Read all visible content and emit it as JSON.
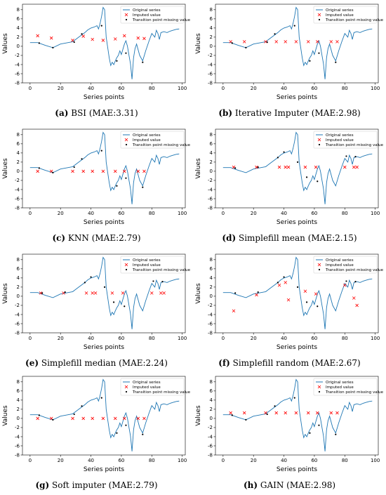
{
  "legend": {
    "original": "Original series",
    "imputed": "Imputed value",
    "transition": "Transition point missing value"
  },
  "colors": {
    "series": "#1f77b4",
    "imputed": "#ff0000",
    "transition": "#000000"
  },
  "chart_data": [
    {
      "type": "line",
      "letter": "(a)",
      "caption": "BSI (MAE:3.31)",
      "xlabel": "Series points",
      "ylabel": "Values",
      "xlim": [
        -5,
        102
      ],
      "ylim": [
        -8,
        9.2
      ],
      "xticks": [
        0,
        20,
        40,
        60,
        80,
        100
      ],
      "yticks": [
        -8,
        -6,
        -4,
        -2,
        0,
        2,
        4,
        6,
        8
      ],
      "imputed": [
        [
          5,
          2.3
        ],
        [
          14,
          1.8
        ],
        [
          28,
          1.3
        ],
        [
          35,
          2.2
        ],
        [
          41,
          1.5
        ],
        [
          48,
          1.3
        ],
        [
          56,
          1.6
        ],
        [
          62,
          2.3
        ],
        [
          71,
          1.8
        ],
        [
          75,
          1.7
        ]
      ],
      "transition": [
        [
          6,
          0.7
        ],
        [
          15,
          -0.3
        ],
        [
          29,
          0.9
        ],
        [
          34,
          2.7
        ],
        [
          47,
          4.5
        ],
        [
          57,
          -3.2
        ],
        [
          63,
          -1.5
        ],
        [
          74,
          -3.5
        ]
      ]
    },
    {
      "type": "line",
      "letter": "(b)",
      "caption": "Iterative Imputer (MAE:2.98)",
      "xlabel": "Series points",
      "ylabel": "Values",
      "xlim": [
        -5,
        102
      ],
      "ylim": [
        -8,
        9.2
      ],
      "xticks": [
        0,
        20,
        40,
        60,
        80,
        100
      ],
      "yticks": [
        -8,
        -6,
        -4,
        -2,
        0,
        2,
        4,
        6,
        8
      ],
      "imputed": [
        [
          5,
          1.0
        ],
        [
          14,
          1.0
        ],
        [
          28,
          1.0
        ],
        [
          35,
          1.0
        ],
        [
          41,
          1.0
        ],
        [
          48,
          1.0
        ],
        [
          56,
          1.0
        ],
        [
          62,
          1.0
        ],
        [
          71,
          1.0
        ],
        [
          75,
          1.0
        ]
      ],
      "transition": [
        [
          6,
          0.7
        ],
        [
          15,
          -0.3
        ],
        [
          29,
          0.9
        ],
        [
          34,
          2.7
        ],
        [
          47,
          4.5
        ],
        [
          57,
          -3.2
        ],
        [
          63,
          -1.5
        ],
        [
          74,
          -3.5
        ]
      ]
    },
    {
      "type": "line",
      "letter": "(c)",
      "caption": "KNN (MAE:2.79)",
      "xlabel": "Series points",
      "ylabel": "Values",
      "xlim": [
        -5,
        102
      ],
      "ylim": [
        -8,
        9.2
      ],
      "xticks": [
        0,
        20,
        40,
        60,
        80,
        100
      ],
      "yticks": [
        -8,
        -6,
        -4,
        -2,
        0,
        2,
        4,
        6,
        8
      ],
      "imputed": [
        [
          5,
          0.0
        ],
        [
          14,
          0.0
        ],
        [
          28,
          0.0
        ],
        [
          35,
          0.0
        ],
        [
          41,
          0.0
        ],
        [
          48,
          0.0
        ],
        [
          56,
          0.0
        ],
        [
          62,
          0.0
        ],
        [
          71,
          0.0
        ],
        [
          75,
          0.0
        ]
      ],
      "transition": [
        [
          6,
          0.7
        ],
        [
          15,
          -0.3
        ],
        [
          29,
          0.9
        ],
        [
          34,
          2.7
        ],
        [
          47,
          4.5
        ],
        [
          57,
          -3.2
        ],
        [
          63,
          -1.5
        ],
        [
          74,
          -3.5
        ]
      ]
    },
    {
      "type": "line",
      "letter": "(d)",
      "caption": "Simplefill mean (MAE:2.15)",
      "xlabel": "Series points",
      "ylabel": "Values",
      "xlim": [
        -5,
        102
      ],
      "ylim": [
        -8,
        9.2
      ],
      "xticks": [
        0,
        20,
        40,
        60,
        80,
        100
      ],
      "yticks": [
        -8,
        -6,
        -4,
        -2,
        0,
        2,
        4,
        6,
        8
      ],
      "imputed": [
        [
          7,
          0.9
        ],
        [
          22,
          0.9
        ],
        [
          37,
          0.9
        ],
        [
          41,
          0.9
        ],
        [
          43,
          0.9
        ],
        [
          54,
          0.9
        ],
        [
          61,
          0.9
        ],
        [
          80,
          0.9
        ],
        [
          86,
          0.9
        ],
        [
          88,
          0.9
        ]
      ],
      "transition": [
        [
          8,
          0.7
        ],
        [
          23,
          0.9
        ],
        [
          36,
          3.0
        ],
        [
          40,
          4.2
        ],
        [
          49,
          2.0
        ],
        [
          55,
          -1.3
        ],
        [
          62,
          -2.2
        ],
        [
          81,
          3.3
        ],
        [
          87,
          3.2
        ]
      ]
    },
    {
      "type": "line",
      "letter": "(e)",
      "caption": "Simplefill median (MAE:2.24)",
      "xlabel": "Series points",
      "ylabel": "Values",
      "xlim": [
        -5,
        102
      ],
      "ylim": [
        -8,
        9.2
      ],
      "xticks": [
        0,
        20,
        40,
        60,
        80,
        100
      ],
      "yticks": [
        -8,
        -6,
        -4,
        -2,
        0,
        2,
        4,
        6,
        8
      ],
      "imputed": [
        [
          7,
          0.7
        ],
        [
          22,
          0.7
        ],
        [
          37,
          0.7
        ],
        [
          41,
          0.7
        ],
        [
          43,
          0.7
        ],
        [
          54,
          0.7
        ],
        [
          61,
          0.7
        ],
        [
          80,
          0.7
        ],
        [
          86,
          0.7
        ],
        [
          88,
          0.7
        ]
      ],
      "transition": [
        [
          8,
          0.7
        ],
        [
          23,
          0.9
        ],
        [
          36,
          3.0
        ],
        [
          40,
          4.2
        ],
        [
          49,
          2.0
        ],
        [
          55,
          -1.3
        ],
        [
          62,
          -2.2
        ],
        [
          81,
          3.3
        ],
        [
          87,
          3.2
        ]
      ]
    },
    {
      "type": "line",
      "letter": "(f)",
      "caption": "Simplefill random (MAE:2.67)",
      "xlabel": "Series points",
      "ylabel": "Values",
      "xlim": [
        -5,
        102
      ],
      "ylim": [
        -8,
        9.2
      ],
      "xticks": [
        0,
        20,
        40,
        60,
        80,
        100
      ],
      "yticks": [
        -8,
        -6,
        -4,
        -2,
        0,
        2,
        4,
        6,
        8
      ],
      "imputed": [
        [
          7,
          -3.2
        ],
        [
          22,
          0.3
        ],
        [
          37,
          2.4
        ],
        [
          41,
          3.0
        ],
        [
          43,
          -0.8
        ],
        [
          54,
          1.1
        ],
        [
          61,
          0.5
        ],
        [
          80,
          2.4
        ],
        [
          86,
          -0.4
        ],
        [
          88,
          -2.0
        ]
      ],
      "transition": [
        [
          8,
          0.7
        ],
        [
          23,
          0.9
        ],
        [
          36,
          3.0
        ],
        [
          40,
          4.2
        ],
        [
          49,
          2.0
        ],
        [
          55,
          -1.3
        ],
        [
          62,
          -2.2
        ],
        [
          81,
          3.3
        ],
        [
          87,
          3.2
        ]
      ]
    },
    {
      "type": "line",
      "letter": "(g)",
      "caption": "Soft imputer (MAE:2.79)",
      "xlabel": "Series points",
      "ylabel": "Values",
      "xlim": [
        -5,
        102
      ],
      "ylim": [
        -8,
        9.2
      ],
      "xticks": [
        0,
        20,
        40,
        60,
        80,
        100
      ],
      "yticks": [
        -8,
        -6,
        -4,
        -2,
        0,
        2,
        4,
        6,
        8
      ],
      "imputed": [
        [
          5,
          0.0
        ],
        [
          14,
          0.0
        ],
        [
          28,
          0.0
        ],
        [
          35,
          0.0
        ],
        [
          41,
          0.0
        ],
        [
          48,
          0.0
        ],
        [
          56,
          0.0
        ],
        [
          62,
          0.0
        ],
        [
          71,
          0.0
        ],
        [
          75,
          0.0
        ]
      ],
      "transition": [
        [
          6,
          0.7
        ],
        [
          15,
          -0.3
        ],
        [
          29,
          0.9
        ],
        [
          34,
          2.7
        ],
        [
          47,
          4.5
        ],
        [
          57,
          -3.2
        ],
        [
          63,
          -1.5
        ],
        [
          74,
          -3.5
        ]
      ]
    },
    {
      "type": "line",
      "letter": "(h)",
      "caption": "GAIN (MAE:2.98)",
      "xlabel": "Series points",
      "ylabel": "Values",
      "xlim": [
        -5,
        102
      ],
      "ylim": [
        -8,
        9.2
      ],
      "xticks": [
        0,
        20,
        40,
        60,
        80,
        100
      ],
      "yticks": [
        -8,
        -6,
        -4,
        -2,
        0,
        2,
        4,
        6,
        8
      ],
      "imputed": [
        [
          5,
          1.2
        ],
        [
          14,
          1.2
        ],
        [
          28,
          1.2
        ],
        [
          35,
          1.2
        ],
        [
          41,
          1.2
        ],
        [
          48,
          1.2
        ],
        [
          56,
          1.2
        ],
        [
          62,
          1.2
        ],
        [
          71,
          1.2
        ],
        [
          75,
          1.2
        ]
      ],
      "transition": [
        [
          6,
          0.7
        ],
        [
          15,
          -0.3
        ],
        [
          29,
          0.9
        ],
        [
          34,
          2.7
        ],
        [
          47,
          4.5
        ],
        [
          57,
          -3.2
        ],
        [
          63,
          -1.5
        ],
        [
          74,
          -3.5
        ]
      ]
    }
  ],
  "original_series": {
    "x": [
      0,
      5,
      10,
      15,
      20,
      25,
      28,
      30,
      32,
      34,
      36,
      38,
      40,
      42,
      44,
      45,
      46,
      47,
      48,
      49,
      50,
      52,
      53,
      54,
      55,
      56,
      57,
      58,
      59,
      60,
      62,
      63,
      64,
      65,
      66,
      67,
      68,
      69,
      70,
      72,
      74,
      76,
      78,
      80,
      82,
      83,
      84,
      85,
      86,
      88,
      90,
      92,
      94,
      96,
      98
    ],
    "y": [
      0.8,
      0.8,
      0.2,
      -0.3,
      0.5,
      0.8,
      1.0,
      1.5,
      2.0,
      2.5,
      3.0,
      3.6,
      4.0,
      4.2,
      4.5,
      3.8,
      5.0,
      6.5,
      8.5,
      8.0,
      2.0,
      -2.5,
      -4.2,
      -3.5,
      -4.0,
      -3.2,
      -2.5,
      -2.0,
      -1.0,
      -1.8,
      0.5,
      1.2,
      0.0,
      -2.0,
      -3.8,
      -7.2,
      -2.5,
      -0.5,
      0.5,
      -2.0,
      -3.2,
      -1.0,
      1.0,
      2.8,
      2.0,
      3.5,
      2.8,
      1.5,
      3.0,
      3.2,
      3.0,
      3.3,
      3.5,
      3.7,
      3.8
    ]
  }
}
